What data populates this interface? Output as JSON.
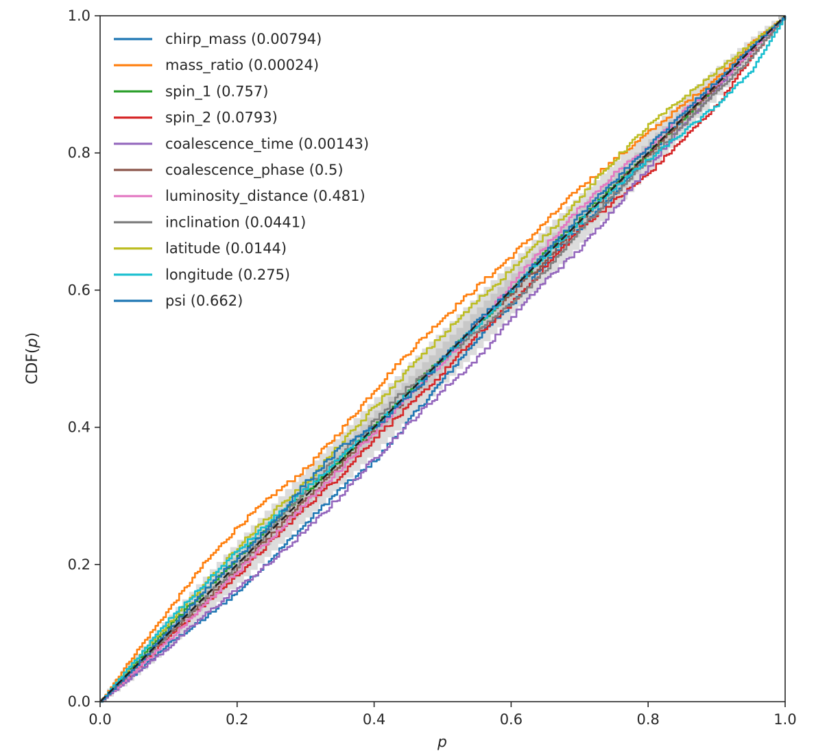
{
  "chart_data": {
    "type": "line",
    "title": "",
    "xlabel": "p",
    "ylabel_prefix": "CDF(",
    "ylabel_var": "p",
    "ylabel_suffix": ")",
    "xlim": [
      0.0,
      1.0
    ],
    "ylim": [
      0.0,
      1.0
    ],
    "x_ticks": [
      0.0,
      0.2,
      0.4,
      0.6,
      0.8,
      1.0
    ],
    "y_ticks": [
      0.0,
      0.2,
      0.4,
      0.6,
      0.8,
      1.0
    ],
    "x_tick_labels": [
      "0.0",
      "0.2",
      "0.4",
      "0.6",
      "0.8",
      "1.0"
    ],
    "y_tick_labels": [
      "0.0",
      "0.2",
      "0.4",
      "0.6",
      "0.8",
      "1.0"
    ],
    "grid": false,
    "legend_position": "upper-left",
    "confidence_bands": [
      {
        "name": "outer band (lighter)",
        "color": "#dcdcdc",
        "halfwidth_max": 0.045
      },
      {
        "name": "inner band (darker)",
        "color": "#c8c8c8",
        "halfwidth_max": 0.025
      }
    ],
    "reference_line": {
      "name": "diagonal",
      "style": "dashed",
      "color": "#1f1f1f",
      "x": [
        0.0,
        1.0
      ],
      "y": [
        0.0,
        1.0
      ]
    },
    "series": [
      {
        "name": "chirp_mass",
        "legend": "chirp_mass (0.00794)",
        "color": "#1f77b4",
        "x": [
          0.0,
          0.05,
          0.1,
          0.15,
          0.2,
          0.25,
          0.3,
          0.35,
          0.4,
          0.45,
          0.5,
          0.55,
          0.6,
          0.65,
          0.7,
          0.75,
          0.8,
          0.85,
          0.9,
          0.95,
          1.0
        ],
        "y": [
          0.0,
          0.04,
          0.085,
          0.12,
          0.16,
          0.21,
          0.26,
          0.31,
          0.35,
          0.41,
          0.47,
          0.53,
          0.58,
          0.64,
          0.69,
          0.74,
          0.8,
          0.85,
          0.9,
          0.95,
          1.0
        ]
      },
      {
        "name": "mass_ratio",
        "legend": "mass_ratio (0.00024)",
        "color": "#ff7f0e",
        "x": [
          0.0,
          0.05,
          0.1,
          0.15,
          0.2,
          0.25,
          0.3,
          0.35,
          0.4,
          0.45,
          0.5,
          0.55,
          0.6,
          0.65,
          0.7,
          0.75,
          0.8,
          0.85,
          0.9,
          0.95,
          1.0
        ],
        "y": [
          0.0,
          0.07,
          0.135,
          0.2,
          0.255,
          0.3,
          0.34,
          0.395,
          0.455,
          0.51,
          0.56,
          0.605,
          0.65,
          0.7,
          0.75,
          0.79,
          0.83,
          0.87,
          0.91,
          0.96,
          1.0
        ]
      },
      {
        "name": "spin_1",
        "legend": "spin_1 (0.757)",
        "color": "#2ca02c",
        "x": [
          0.0,
          0.05,
          0.1,
          0.15,
          0.2,
          0.25,
          0.3,
          0.35,
          0.4,
          0.45,
          0.5,
          0.55,
          0.6,
          0.65,
          0.7,
          0.75,
          0.8,
          0.85,
          0.9,
          0.95,
          1.0
        ],
        "y": [
          0.0,
          0.055,
          0.11,
          0.16,
          0.21,
          0.26,
          0.305,
          0.35,
          0.4,
          0.455,
          0.5,
          0.55,
          0.6,
          0.655,
          0.705,
          0.755,
          0.8,
          0.85,
          0.9,
          0.95,
          1.0
        ]
      },
      {
        "name": "spin_2",
        "legend": "spin_2 (0.0793)",
        "color": "#d62728",
        "x": [
          0.0,
          0.05,
          0.1,
          0.15,
          0.2,
          0.25,
          0.3,
          0.35,
          0.4,
          0.45,
          0.5,
          0.55,
          0.6,
          0.65,
          0.7,
          0.75,
          0.8,
          0.85,
          0.9,
          0.95,
          1.0
        ],
        "y": [
          0.0,
          0.045,
          0.095,
          0.14,
          0.185,
          0.235,
          0.285,
          0.33,
          0.385,
          0.43,
          0.48,
          0.535,
          0.58,
          0.635,
          0.69,
          0.73,
          0.77,
          0.82,
          0.87,
          0.94,
          1.0
        ]
      },
      {
        "name": "coalescence_time",
        "legend": "coalescence_time (0.00143)",
        "color": "#9467bd",
        "x": [
          0.0,
          0.05,
          0.1,
          0.15,
          0.2,
          0.25,
          0.3,
          0.35,
          0.4,
          0.45,
          0.5,
          0.55,
          0.6,
          0.65,
          0.7,
          0.75,
          0.8,
          0.85,
          0.9,
          0.95,
          1.0
        ],
        "y": [
          0.0,
          0.04,
          0.08,
          0.125,
          0.165,
          0.205,
          0.25,
          0.3,
          0.355,
          0.405,
          0.455,
          0.5,
          0.56,
          0.615,
          0.66,
          0.72,
          0.78,
          0.84,
          0.895,
          0.95,
          1.0
        ]
      },
      {
        "name": "coalescence_phase",
        "legend": "coalescence_phase (0.5)",
        "color": "#8c564b",
        "x": [
          0.0,
          0.05,
          0.1,
          0.15,
          0.2,
          0.25,
          0.3,
          0.35,
          0.4,
          0.45,
          0.5,
          0.55,
          0.6,
          0.65,
          0.7,
          0.75,
          0.8,
          0.85,
          0.9,
          0.95,
          1.0
        ],
        "y": [
          0.0,
          0.05,
          0.1,
          0.145,
          0.195,
          0.245,
          0.295,
          0.345,
          0.395,
          0.445,
          0.5,
          0.55,
          0.595,
          0.645,
          0.7,
          0.75,
          0.8,
          0.85,
          0.9,
          0.95,
          1.0
        ]
      },
      {
        "name": "luminosity_distance",
        "legend": "luminosity_distance (0.481)",
        "color": "#e377c2",
        "x": [
          0.0,
          0.05,
          0.1,
          0.15,
          0.2,
          0.25,
          0.3,
          0.35,
          0.4,
          0.45,
          0.5,
          0.55,
          0.6,
          0.65,
          0.7,
          0.75,
          0.8,
          0.85,
          0.9,
          0.95,
          1.0
        ],
        "y": [
          0.0,
          0.045,
          0.09,
          0.14,
          0.19,
          0.24,
          0.29,
          0.34,
          0.395,
          0.445,
          0.495,
          0.55,
          0.61,
          0.665,
          0.72,
          0.77,
          0.81,
          0.86,
          0.9,
          0.95,
          1.0
        ]
      },
      {
        "name": "inclination",
        "legend": "inclination (0.0441)",
        "color": "#7f7f7f",
        "x": [
          0.0,
          0.05,
          0.1,
          0.15,
          0.2,
          0.25,
          0.3,
          0.35,
          0.4,
          0.45,
          0.5,
          0.55,
          0.6,
          0.65,
          0.7,
          0.75,
          0.8,
          0.85,
          0.9,
          0.95,
          1.0
        ],
        "y": [
          0.0,
          0.05,
          0.1,
          0.15,
          0.2,
          0.255,
          0.31,
          0.36,
          0.41,
          0.46,
          0.5,
          0.54,
          0.58,
          0.63,
          0.69,
          0.74,
          0.79,
          0.84,
          0.89,
          0.94,
          1.0
        ]
      },
      {
        "name": "latitude",
        "legend": "latitude (0.0144)",
        "color": "#bcbd22",
        "x": [
          0.0,
          0.05,
          0.1,
          0.15,
          0.2,
          0.25,
          0.3,
          0.35,
          0.4,
          0.45,
          0.5,
          0.55,
          0.6,
          0.65,
          0.7,
          0.75,
          0.8,
          0.85,
          0.9,
          0.95,
          1.0
        ],
        "y": [
          0.0,
          0.06,
          0.115,
          0.17,
          0.225,
          0.275,
          0.32,
          0.375,
          0.43,
          0.485,
          0.535,
          0.585,
          0.63,
          0.68,
          0.735,
          0.79,
          0.84,
          0.88,
          0.92,
          0.96,
          1.0
        ]
      },
      {
        "name": "longitude",
        "legend": "longitude (0.275)",
        "color": "#17becf",
        "x": [
          0.0,
          0.05,
          0.1,
          0.15,
          0.2,
          0.25,
          0.3,
          0.35,
          0.4,
          0.45,
          0.5,
          0.55,
          0.6,
          0.65,
          0.7,
          0.75,
          0.8,
          0.85,
          0.9,
          0.95,
          1.0
        ],
        "y": [
          0.0,
          0.06,
          0.12,
          0.17,
          0.22,
          0.265,
          0.31,
          0.355,
          0.4,
          0.45,
          0.5,
          0.55,
          0.6,
          0.65,
          0.7,
          0.75,
          0.79,
          0.83,
          0.87,
          0.92,
          1.0
        ]
      },
      {
        "name": "psi",
        "legend": "psi (0.662)",
        "color": "#1f77b4",
        "x": [
          0.0,
          0.05,
          0.1,
          0.15,
          0.2,
          0.25,
          0.3,
          0.35,
          0.4,
          0.45,
          0.5,
          0.55,
          0.6,
          0.65,
          0.7,
          0.75,
          0.8,
          0.85,
          0.9,
          0.95,
          1.0
        ],
        "y": [
          0.0,
          0.05,
          0.105,
          0.16,
          0.21,
          0.26,
          0.32,
          0.37,
          0.4,
          0.445,
          0.5,
          0.555,
          0.6,
          0.655,
          0.71,
          0.76,
          0.81,
          0.86,
          0.905,
          0.955,
          1.0
        ]
      }
    ]
  }
}
